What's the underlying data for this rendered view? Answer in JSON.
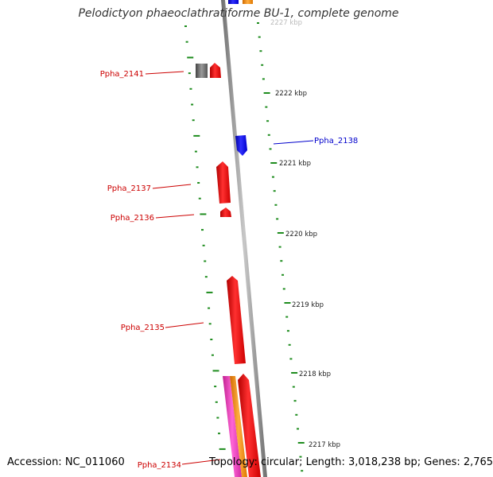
{
  "title": "Pelodictyon phaeoclathratiforme BU-1, complete genome",
  "footer": {
    "accession": "Accession: NC_011060",
    "info": "Topology: circular; Length: 3,018,238 bp; Genes: 2,765"
  },
  "colors": {
    "backbone": "#8a8a8a",
    "tick": "#1e8c1e",
    "gene_red": "#ff0000",
    "gene_blue": "#0000ff",
    "gene_gray": "#666666",
    "gene_orange": "#ff8c00",
    "gene_magenta": "#ee33bb",
    "label_red": "#cc0000",
    "label_blue": "#0000cc"
  },
  "kbp_labels": [
    "2227 kbp",
    "2222 kbp",
    "2221 kbp",
    "2220 kbp",
    "2219 kbp",
    "2218 kbp",
    "2217 kbp"
  ],
  "genes": [
    {
      "name": "Ppha_2141",
      "color": "red"
    },
    {
      "name": "Ppha_2138",
      "color": "blue"
    },
    {
      "name": "Ppha_2137",
      "color": "red"
    },
    {
      "name": "Ppha_2136",
      "color": "red"
    },
    {
      "name": "Ppha_2135",
      "color": "red"
    },
    {
      "name": "Ppha_2134",
      "color": "red"
    }
  ]
}
